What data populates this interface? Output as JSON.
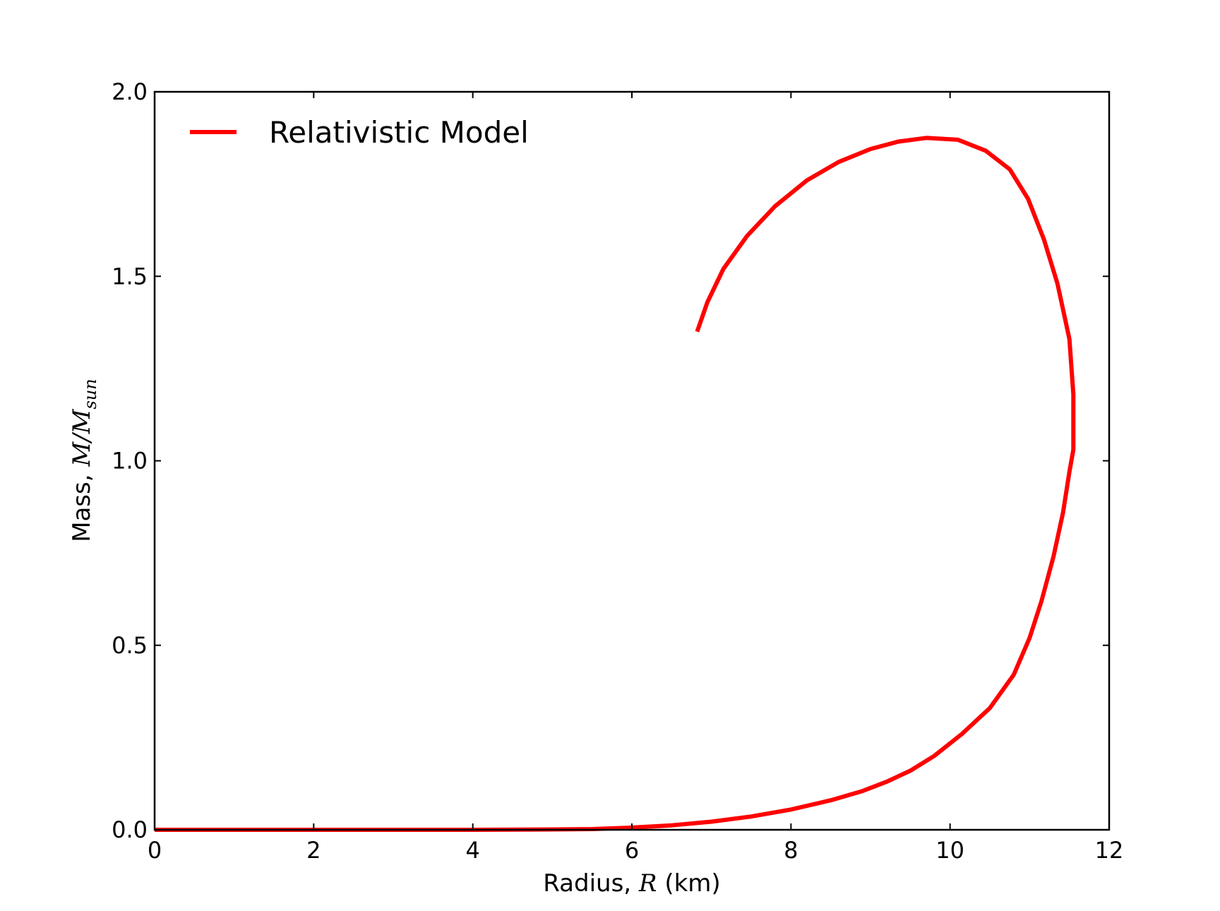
{
  "chart_data": {
    "type": "line",
    "title": "",
    "xlabel": {
      "prefix": "Radius, ",
      "math": "R",
      "suffix": " (km)"
    },
    "ylabel": {
      "prefix": "Mass, ",
      "math": "M/M",
      "math_sub": "sun"
    },
    "xlim": [
      0,
      12
    ],
    "ylim": [
      0,
      2.0
    ],
    "xticks": [
      0,
      2,
      4,
      6,
      8,
      10,
      12
    ],
    "xtick_labels": [
      "0",
      "2",
      "4",
      "6",
      "8",
      "10",
      "12"
    ],
    "yticks": [
      0,
      0.5,
      1.0,
      1.5,
      2.0
    ],
    "ytick_labels": [
      "0.0",
      "0.5",
      "1.0",
      "1.5",
      "2.0"
    ],
    "grid": false,
    "legend_position": "top-left",
    "series": [
      {
        "name": "Relativistic Model",
        "color": "#ff0000",
        "points": [
          [
            0,
            0.0
          ],
          [
            1,
            0.0
          ],
          [
            2,
            0.0
          ],
          [
            3,
            0.0
          ],
          [
            4,
            0.0
          ],
          [
            5,
            0.001
          ],
          [
            5.5,
            0.002
          ],
          [
            6.0,
            0.006
          ],
          [
            6.5,
            0.012
          ],
          [
            7.0,
            0.022
          ],
          [
            7.5,
            0.036
          ],
          [
            8.0,
            0.055
          ],
          [
            8.5,
            0.08
          ],
          [
            8.9,
            0.105
          ],
          [
            9.2,
            0.13
          ],
          [
            9.5,
            0.16
          ],
          [
            9.8,
            0.2
          ],
          [
            10.15,
            0.26
          ],
          [
            10.5,
            0.33
          ],
          [
            10.8,
            0.42
          ],
          [
            11.0,
            0.52
          ],
          [
            11.15,
            0.62
          ],
          [
            11.3,
            0.74
          ],
          [
            11.42,
            0.86
          ],
          [
            11.5,
            0.97
          ],
          [
            11.55,
            1.03
          ],
          [
            11.55,
            1.18
          ],
          [
            11.5,
            1.33
          ],
          [
            11.35,
            1.48
          ],
          [
            11.18,
            1.6
          ],
          [
            10.98,
            1.71
          ],
          [
            10.75,
            1.79
          ],
          [
            10.45,
            1.84
          ],
          [
            10.1,
            1.87
          ],
          [
            9.7,
            1.875
          ],
          [
            9.35,
            1.865
          ],
          [
            9.0,
            1.845
          ],
          [
            8.6,
            1.81
          ],
          [
            8.2,
            1.76
          ],
          [
            7.8,
            1.69
          ],
          [
            7.45,
            1.61
          ],
          [
            7.15,
            1.52
          ],
          [
            6.95,
            1.43
          ],
          [
            6.82,
            1.35
          ]
        ]
      }
    ]
  }
}
